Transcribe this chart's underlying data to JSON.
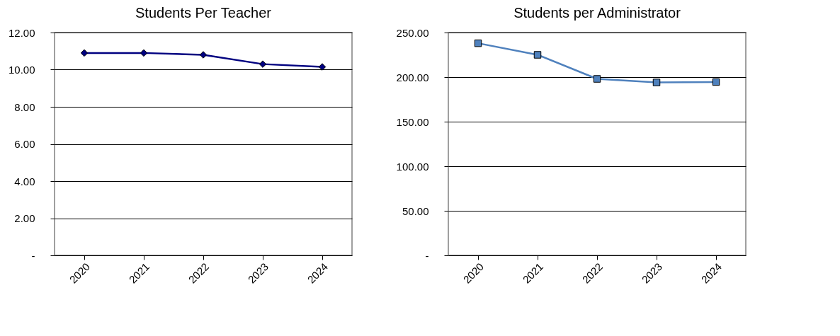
{
  "chart_data": [
    {
      "type": "line",
      "title": "Students  Per Teacher",
      "categories": [
        "2020",
        "2021",
        "2022",
        "2023",
        "2024"
      ],
      "series": [
        {
          "color": "#000080",
          "values": [
            10.9,
            10.9,
            10.8,
            10.3,
            10.15
          ]
        }
      ],
      "ylim": [
        0,
        12
      ],
      "yticks": [
        {
          "value": 0,
          "label": "-"
        },
        {
          "value": 2,
          "label": "2.00"
        },
        {
          "value": 4,
          "label": "4.00"
        },
        {
          "value": 6,
          "label": "6.00"
        },
        {
          "value": 8,
          "label": "8.00"
        },
        {
          "value": 10,
          "label": "10.00"
        },
        {
          "value": 12,
          "label": "12.00"
        }
      ],
      "grid": "y",
      "marker": "diamond",
      "line_style": "solid"
    },
    {
      "type": "line",
      "title": "Students per Administrator",
      "categories": [
        "2020",
        "2021",
        "2022",
        "2023",
        "2024"
      ],
      "series": [
        {
          "color": "#4f81bd",
          "values": [
            238,
            225,
            198,
            194,
            194.5
          ]
        }
      ],
      "ylim": [
        0,
        250
      ],
      "yticks": [
        {
          "value": 0,
          "label": "-"
        },
        {
          "value": 50,
          "label": "50.00"
        },
        {
          "value": 100,
          "label": "100.00"
        },
        {
          "value": 150,
          "label": "150.00"
        },
        {
          "value": 200,
          "label": "200.00"
        },
        {
          "value": 250,
          "label": "250.00"
        }
      ],
      "grid": "y",
      "marker": "square",
      "line_style": "solid"
    }
  ]
}
